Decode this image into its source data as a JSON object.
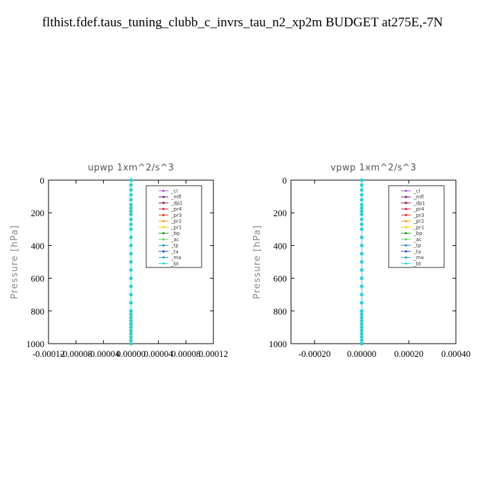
{
  "page_title": "flthist.fdef.taus_tuning_clubb_c_invrs_tau_n2_xp2m  BUDGET at275E,-7N",
  "chart_data": [
    {
      "type": "line",
      "title": "upwp   1xm^2/s^3",
      "ylabel": "Pressure [hPa]",
      "ylim": [
        1000,
        0
      ],
      "xlim": [
        -0.00012,
        0.00012
      ],
      "xticks": [
        "-0.00012",
        "-0.00008",
        "-0.00004",
        "0.00000",
        "0.00004",
        "0.00008",
        "0.00012"
      ],
      "xtick_values": [
        -0.00012,
        -8e-05,
        -4e-05,
        0,
        4e-05,
        8e-05,
        0.00012
      ],
      "yticks": [
        "0",
        "200",
        "400",
        "600",
        "800",
        "1000"
      ],
      "ytick_values": [
        0,
        200,
        400,
        600,
        800,
        1000
      ],
      "legend_position": "top-right",
      "y": [
        0,
        30,
        60,
        90,
        120,
        150,
        170,
        190,
        210,
        240,
        270,
        300,
        350,
        400,
        450,
        500,
        550,
        600,
        650,
        700,
        750,
        800,
        820,
        840,
        860,
        880,
        900,
        920,
        940,
        960,
        980,
        1000
      ],
      "series": [
        {
          "name": "_cl",
          "color": "#9a5fc8",
          "values": [
            0,
            0,
            0,
            0,
            0,
            0,
            0,
            0,
            0,
            0,
            0,
            0,
            0,
            0,
            0,
            0,
            0,
            0,
            0,
            0,
            0,
            0,
            0,
            0,
            0,
            0,
            0,
            0,
            0,
            0,
            0,
            0
          ]
        },
        {
          "name": "_mfl",
          "color": "#7a1f7a",
          "values": [
            0,
            0,
            0,
            0,
            0,
            0,
            0,
            0,
            0,
            0,
            0,
            0,
            0,
            0,
            0,
            0,
            0,
            0,
            0,
            0,
            0,
            0,
            0,
            0,
            0,
            0,
            0,
            0,
            0,
            0,
            0,
            0
          ]
        },
        {
          "name": "_dp1",
          "color": "#8b1a4a",
          "values": [
            0,
            0,
            0,
            0,
            0,
            0,
            0,
            0,
            0,
            0,
            0,
            0,
            0,
            0,
            0,
            0,
            0,
            0,
            0,
            0,
            0,
            0,
            0,
            0,
            0,
            0,
            0,
            0,
            0,
            0,
            0,
            0
          ]
        },
        {
          "name": "_pr4",
          "color": "#d6294b",
          "values": [
            0,
            0,
            0,
            0,
            0,
            0,
            0,
            0,
            0,
            0,
            0,
            0,
            0,
            0,
            0,
            0,
            0,
            0,
            0,
            0,
            0,
            0,
            0,
            0,
            0,
            0,
            0,
            0,
            0,
            0,
            0,
            0
          ]
        },
        {
          "name": "_pr3",
          "color": "#e8302a",
          "values": [
            0,
            0,
            0,
            0,
            0,
            0,
            0,
            0,
            0,
            0,
            0,
            0,
            0,
            0,
            0,
            0,
            0,
            0,
            0,
            0,
            0,
            0,
            0,
            0,
            0,
            0,
            0,
            0,
            0,
            0,
            0,
            0
          ]
        },
        {
          "name": "_pr2",
          "color": "#f0a020",
          "values": [
            0,
            0,
            0,
            0,
            0,
            0,
            0,
            0,
            0,
            0,
            0,
            0,
            0,
            0,
            0,
            0,
            0,
            0,
            0,
            0,
            0,
            0,
            0,
            0,
            0,
            0,
            0,
            0,
            0,
            0,
            0,
            0
          ]
        },
        {
          "name": "_pr1",
          "color": "#f5d000",
          "values": [
            0,
            0,
            0,
            0,
            0,
            0,
            0,
            0,
            0,
            0,
            0,
            0,
            0,
            0,
            0,
            0,
            0,
            0,
            0,
            0,
            0,
            0,
            0,
            0,
            0,
            0,
            0,
            0,
            0,
            0,
            0,
            0
          ]
        },
        {
          "name": "_bp",
          "color": "#1e9e2e",
          "values": [
            0,
            0,
            0,
            0,
            0,
            0,
            0,
            0,
            0,
            0,
            0,
            0,
            0,
            0,
            0,
            0,
            0,
            0,
            0,
            0,
            0,
            0,
            0,
            0,
            0,
            0,
            0,
            0,
            0,
            0,
            0,
            0
          ]
        },
        {
          "name": "_ac",
          "color": "#60d860",
          "values": [
            0,
            0,
            0,
            0,
            0,
            0,
            0,
            0,
            0,
            0,
            0,
            0,
            0,
            0,
            0,
            0,
            0,
            0,
            0,
            0,
            0,
            0,
            0,
            0,
            0,
            0,
            0,
            0,
            0,
            0,
            0,
            0
          ]
        },
        {
          "name": "_tp",
          "color": "#1f8fc0",
          "values": [
            0,
            0,
            0,
            0,
            0,
            0,
            0,
            0,
            0,
            0,
            0,
            0,
            0,
            0,
            0,
            0,
            0,
            0,
            0,
            0,
            0,
            0,
            0,
            0,
            0,
            0,
            0,
            0,
            0,
            0,
            0,
            0
          ]
        },
        {
          "name": "_ta",
          "color": "#2050c0",
          "values": [
            0,
            0,
            0,
            0,
            0,
            0,
            0,
            0,
            0,
            0,
            0,
            0,
            0,
            0,
            0,
            0,
            0,
            0,
            0,
            0,
            0,
            0,
            0,
            0,
            0,
            0,
            0,
            0,
            0,
            0,
            0,
            0
          ]
        },
        {
          "name": "_ma",
          "color": "#3aa0d8",
          "values": [
            0,
            0,
            0,
            0,
            0,
            0,
            0,
            0,
            0,
            0,
            0,
            0,
            0,
            0,
            0,
            0,
            0,
            0,
            0,
            0,
            0,
            0,
            0,
            0,
            0,
            0,
            0,
            0,
            0,
            0,
            0,
            0
          ]
        },
        {
          "name": "_bt",
          "color": "#20d8d8",
          "values": [
            0,
            0,
            0,
            0,
            0,
            0,
            0,
            0,
            0,
            0,
            0,
            0,
            0,
            0,
            0,
            0,
            0,
            0,
            0,
            0,
            0,
            0,
            0,
            0,
            0,
            0,
            0,
            0,
            0,
            0,
            0,
            0
          ]
        }
      ]
    },
    {
      "type": "line",
      "title": "vpwp   1xm^2/s^3",
      "ylabel": "Pressure [hPa]",
      "ylim": [
        1000,
        0
      ],
      "xlim": [
        -0.0003,
        0.0004
      ],
      "xticks": [
        "-0.00020",
        "0.00000",
        "0.00020",
        "0.00040"
      ],
      "xtick_values": [
        -0.0002,
        0,
        0.0002,
        0.0004
      ],
      "yticks": [
        "0",
        "200",
        "400",
        "600",
        "800",
        "1000"
      ],
      "ytick_values": [
        0,
        200,
        400,
        600,
        800,
        1000
      ],
      "legend_position": "top-right",
      "y": [
        0,
        30,
        60,
        90,
        120,
        150,
        170,
        190,
        210,
        240,
        270,
        300,
        350,
        400,
        450,
        500,
        550,
        600,
        650,
        700,
        750,
        800,
        820,
        840,
        860,
        880,
        900,
        920,
        940,
        960,
        980,
        1000
      ],
      "series": [
        {
          "name": "_cl",
          "color": "#9a5fc8",
          "values": [
            0,
            0,
            0,
            0,
            0,
            0,
            0,
            0,
            0,
            0,
            0,
            0,
            0,
            0,
            0,
            0,
            0,
            0,
            0,
            0,
            0,
            0,
            0,
            0,
            0,
            0,
            0,
            0,
            0,
            0,
            0,
            0
          ]
        },
        {
          "name": "_mfl",
          "color": "#7a1f7a",
          "values": [
            0,
            0,
            0,
            0,
            0,
            0,
            0,
            0,
            0,
            0,
            0,
            0,
            0,
            0,
            0,
            0,
            0,
            0,
            0,
            0,
            0,
            0,
            0,
            0,
            0,
            0,
            0,
            0,
            0,
            0,
            0,
            0
          ]
        },
        {
          "name": "_dp1",
          "color": "#8b1a4a",
          "values": [
            0,
            0,
            0,
            0,
            0,
            0,
            0,
            0,
            0,
            0,
            0,
            0,
            0,
            0,
            0,
            0,
            0,
            0,
            0,
            0,
            0,
            0,
            0,
            0,
            0,
            0,
            0,
            0,
            0,
            0,
            0,
            0
          ]
        },
        {
          "name": "_pr4",
          "color": "#d6294b",
          "values": [
            0,
            0,
            0,
            0,
            0,
            0,
            0,
            0,
            0,
            0,
            0,
            0,
            0,
            0,
            0,
            0,
            0,
            0,
            0,
            0,
            0,
            0,
            0,
            0,
            0,
            0,
            0,
            0,
            0,
            0,
            0,
            0
          ]
        },
        {
          "name": "_pr3",
          "color": "#e8302a",
          "values": [
            0,
            0,
            0,
            0,
            0,
            0,
            0,
            0,
            0,
            0,
            0,
            0,
            0,
            0,
            0,
            0,
            0,
            0,
            0,
            0,
            0,
            0,
            0,
            0,
            0,
            0,
            0,
            0,
            0,
            0,
            0,
            0
          ]
        },
        {
          "name": "_pr2",
          "color": "#f0a020",
          "values": [
            0,
            0,
            0,
            0,
            0,
            0,
            0,
            0,
            0,
            0,
            0,
            0,
            0,
            0,
            0,
            0,
            0,
            0,
            0,
            0,
            0,
            0,
            0,
            0,
            0,
            0,
            0,
            0,
            0,
            0,
            0,
            0
          ]
        },
        {
          "name": "_pr1",
          "color": "#f5d000",
          "values": [
            0,
            0,
            0,
            0,
            0,
            0,
            0,
            0,
            0,
            0,
            0,
            0,
            0,
            0,
            0,
            0,
            0,
            0,
            0,
            0,
            0,
            0,
            0,
            0,
            0,
            0,
            0,
            0,
            0,
            0,
            0,
            0
          ]
        },
        {
          "name": "_bp",
          "color": "#1e9e2e",
          "values": [
            0,
            0,
            0,
            0,
            0,
            0,
            0,
            0,
            0,
            0,
            0,
            0,
            0,
            0,
            0,
            0,
            0,
            0,
            0,
            0,
            0,
            0,
            0,
            0,
            0,
            0,
            0,
            0,
            0,
            0,
            0,
            0
          ]
        },
        {
          "name": "_ac",
          "color": "#60d860",
          "values": [
            0,
            0,
            0,
            0,
            0,
            0,
            0,
            0,
            0,
            0,
            0,
            0,
            0,
            0,
            0,
            0,
            0,
            0,
            0,
            0,
            0,
            0,
            0,
            0,
            0,
            0,
            0,
            0,
            0,
            0,
            0,
            0
          ]
        },
        {
          "name": "_tp",
          "color": "#1f8fc0",
          "values": [
            0,
            0,
            0,
            0,
            0,
            0,
            0,
            0,
            0,
            0,
            0,
            0,
            0,
            0,
            0,
            0,
            0,
            0,
            0,
            0,
            0,
            0,
            0,
            0,
            0,
            0,
            0,
            0,
            0,
            0,
            0,
            0
          ]
        },
        {
          "name": "_ta",
          "color": "#2050c0",
          "values": [
            0,
            0,
            0,
            0,
            0,
            0,
            0,
            0,
            0,
            0,
            0,
            0,
            0,
            0,
            0,
            0,
            0,
            0,
            0,
            0,
            0,
            0,
            0,
            0,
            0,
            0,
            0,
            0,
            0,
            0,
            0,
            0
          ]
        },
        {
          "name": "_ma",
          "color": "#3aa0d8",
          "values": [
            0,
            0,
            0,
            0,
            0,
            0,
            0,
            0,
            0,
            0,
            0,
            0,
            0,
            0,
            0,
            0,
            0,
            0,
            0,
            0,
            0,
            0,
            0,
            0,
            0,
            0,
            0,
            0,
            0,
            0,
            0,
            0
          ]
        },
        {
          "name": "_bt",
          "color": "#20d8d8",
          "values": [
            0,
            0,
            0,
            0,
            0,
            0,
            0,
            0,
            0,
            0,
            0,
            0,
            0,
            0,
            0,
            0,
            0,
            0,
            0,
            0,
            0,
            0,
            0,
            0,
            0,
            0,
            0,
            0,
            0,
            0,
            0,
            0
          ]
        }
      ]
    }
  ]
}
